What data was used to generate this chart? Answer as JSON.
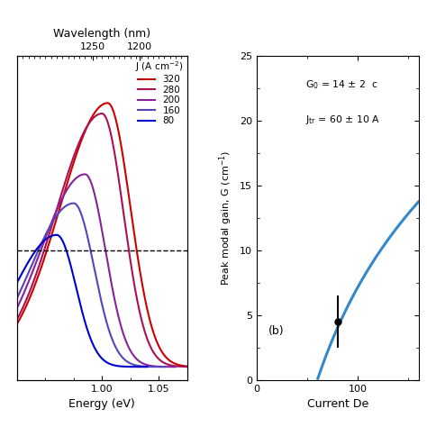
{
  "left_panel": {
    "xlim": [
      0.925,
      1.075
    ],
    "ylim": [
      -0.05,
      1.18
    ],
    "xticks": [
      1.0,
      1.05
    ],
    "xlabel": "Energy (eV)",
    "dashed_line_y": 0.44,
    "wavelength_ticks_nm": [
      1250,
      1200
    ],
    "top_xlabel": "Wavelength (nm)",
    "legend_title": "J (A cm$^{-2}$)",
    "curves": [
      {
        "label": "320",
        "color": "#cc0000",
        "peak_e": 1.005,
        "peak_g": 1.0,
        "wl": 0.042,
        "wr": 0.02
      },
      {
        "label": "280",
        "color": "#aa1155",
        "peak_e": 1.0,
        "peak_g": 0.96,
        "wl": 0.041,
        "wr": 0.019
      },
      {
        "label": "200",
        "color": "#882299",
        "peak_e": 0.985,
        "peak_g": 0.73,
        "wl": 0.039,
        "wr": 0.018
      },
      {
        "label": "160",
        "color": "#5544bb",
        "peak_e": 0.975,
        "peak_g": 0.62,
        "wl": 0.038,
        "wr": 0.018
      },
      {
        "label": "80",
        "color": "#0000cc",
        "peak_e": 0.96,
        "peak_g": 0.5,
        "wl": 0.037,
        "wr": 0.017
      }
    ]
  },
  "right_panel": {
    "xlim": [
      0,
      160
    ],
    "ylim": [
      0,
      25
    ],
    "xticks": [
      0,
      100
    ],
    "yticks": [
      0,
      5,
      10,
      15,
      20,
      25
    ],
    "xlabel": "Current De",
    "ylabel": "Peak modal gain, G (cm$^{-1}$)",
    "G0": 14,
    "Jtr": 60,
    "curve_color": "#3388cc",
    "data_point_x": 80,
    "data_point_y": 4.5,
    "data_point_yerr": 2.0,
    "panel_label": "(b)",
    "ann1": "G$_0$ = 14 $\\pm$ 2  c",
    "ann2": "J$_{\\rm tr}$ = 60 $\\pm$ 10 A"
  }
}
